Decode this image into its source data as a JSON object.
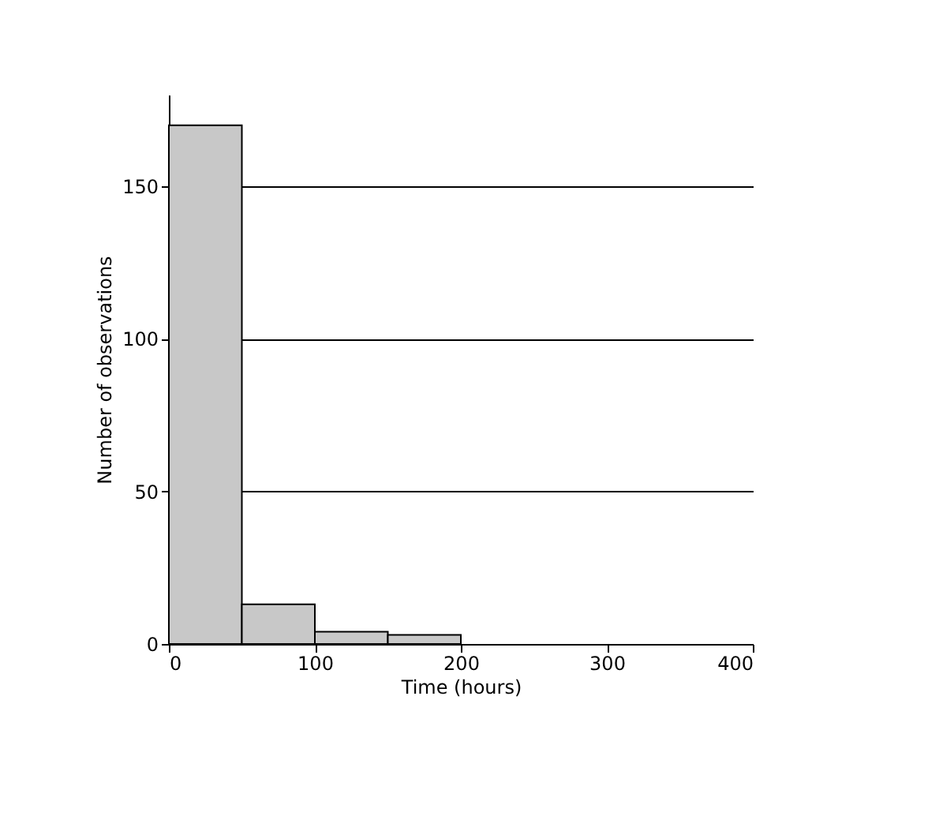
{
  "chart_data": {
    "type": "histogram",
    "xlabel": "Time (hours)",
    "ylabel": "Number of observations",
    "bins": [
      0,
      50,
      100,
      150,
      200
    ],
    "values": [
      170,
      13,
      4,
      3
    ],
    "color": "#c8c8c8",
    "xlim": [
      0,
      400
    ],
    "xticks": [
      0,
      100,
      200,
      300,
      400
    ],
    "ylim": [
      0,
      180
    ],
    "yticks": [
      0,
      50,
      100,
      150
    ],
    "grid": "y"
  }
}
